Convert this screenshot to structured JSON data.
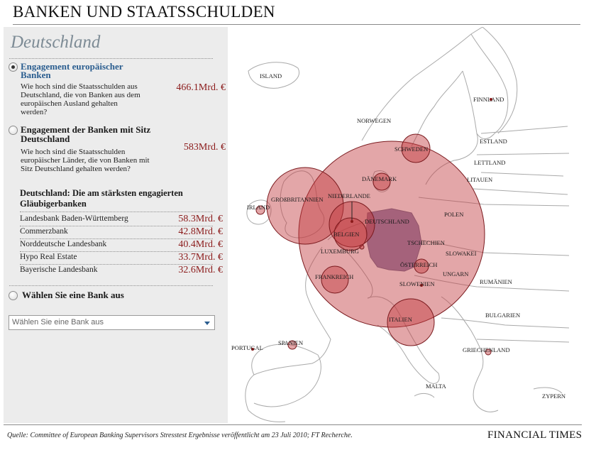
{
  "title": "BANKEN UND STAATSSCHULDEN",
  "panel": {
    "country": "Deutschland",
    "options": [
      {
        "title_line1": "Engagement europäischer",
        "title_line2": "Banken",
        "desc_lines": [
          "Wie hoch sind die Staatsschulden aus",
          "Deutschland, die von Banken aus dem",
          "europäischen Ausland gehalten",
          "werden?"
        ],
        "amount": "466.1Mrd. €",
        "selected": true
      },
      {
        "title_line1": "Engagement der Banken mit Sitz",
        "title_line2": "Deutschland",
        "desc_lines": [
          "Wie hoch sind die Staatsschulden",
          "europäischer Länder, die von Banken mit",
          "Sitz Deutschland gehalten werden?"
        ],
        "amount": "583Mrd. €",
        "selected": false
      }
    ],
    "creditors_heading_line1": "Deutschland: Die am stärksten engagierten",
    "creditors_heading_line2": "Gläubigerbanken",
    "creditors": [
      {
        "name": "Landesbank Baden-Württemberg",
        "value": "58.3Mrd. €"
      },
      {
        "name": "Commerzbank",
        "value": "42.8Mrd. €"
      },
      {
        "name": "Norddeutsche Landesbank",
        "value": "40.4Mrd. €"
      },
      {
        "name": "Hypo Real Estate",
        "value": "33.7Mrd. €"
      },
      {
        "name": "Bayerische Landesbank",
        "value": "32.6Mrd. €"
      }
    ],
    "choose_bank_label": "Wählen Sie eine Bank aus",
    "select": {
      "value": "Wählen Sie eine Bank aus"
    }
  },
  "map": {
    "labels": {
      "island": "ISLAND",
      "finnland": "FINNLAND",
      "norwegen": "NORWEGEN",
      "schweden": "SCHWEDEN",
      "estland": "ESTLAND",
      "lettland": "LETTLAND",
      "litauen": "LITAUEN",
      "daenemark": "DÄNEMARK",
      "grossbritannien": "GROßBRITANNIEN",
      "irland": "IRLAND",
      "niederlande": "NIEDERLANDE",
      "deutschland": "DEUTSCHLAND",
      "polen": "POLEN",
      "belgien": "BELGIEN",
      "luxemburg": "LUXEMBURG",
      "tschechien": "TSCHECHIEN",
      "slowakei": "SLOWAKEI",
      "oesterreich": "ÖSTERREICH",
      "ungarn": "UNGARN",
      "frankreich": "FRANKREICH",
      "slowenien": "SLOWENIEN",
      "rumaenien": "RUMÄNIEN",
      "bulgarien": "BULGARIEN",
      "italien": "ITALIEN",
      "portugal": "PORTUGAL",
      "spanien": "SPANIEN",
      "griechenland": "GRIECHENLAND",
      "malta": "MALTA",
      "zypern": "ZYPERN"
    },
    "colors": {
      "bubble": "#c0393f",
      "bubble_stroke": "#7a1a1e",
      "germany": "#8e84ae",
      "land_border": "#a9a9a9"
    }
  },
  "footer": {
    "source": "Quelle: Committee of European Banking Supervisors Stresstest Ergebnisse veröffentlicht am 23 Juli 2010; FT Recherche.",
    "brand": "FINANCIAL TIMES"
  }
}
